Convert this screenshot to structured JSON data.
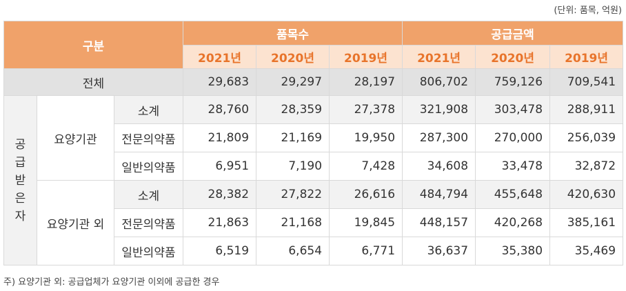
{
  "unit_note": "(단위: 품목, 억원)",
  "headers": {
    "category": "구분",
    "group_items": "품목수",
    "group_amount": "공급금액",
    "years": [
      "2021년",
      "2020년",
      "2019년"
    ]
  },
  "total": {
    "label": "전체",
    "values": [
      "29,683",
      "29,297",
      "28,197",
      "806,702",
      "759,126",
      "709,541"
    ]
  },
  "recipient_label": [
    "공",
    "급",
    "받",
    "은",
    "자"
  ],
  "groups": [
    {
      "name": "요양기관",
      "rows": [
        {
          "label": "소계",
          "values": [
            "28,760",
            "28,359",
            "27,378",
            "321,908",
            "303,478",
            "288,911"
          ]
        },
        {
          "label": "전문의약품",
          "values": [
            "21,809",
            "21,169",
            "19,950",
            "287,300",
            "270,000",
            "256,039"
          ]
        },
        {
          "label": "일반의약품",
          "values": [
            "6,951",
            "7,190",
            "7,428",
            "34,608",
            "33,478",
            "32,872"
          ]
        }
      ]
    },
    {
      "name": "요양기관 외",
      "rows": [
        {
          "label": "소계",
          "values": [
            "28,382",
            "27,822",
            "26,616",
            "484,794",
            "455,648",
            "420,630"
          ]
        },
        {
          "label": "전문의약품",
          "values": [
            "21,863",
            "21,168",
            "19,845",
            "448,157",
            "420,268",
            "385,161"
          ]
        },
        {
          "label": "일반의약품",
          "values": [
            "6,519",
            "6,654",
            "6,771",
            "36,637",
            "35,380",
            "35,469"
          ]
        }
      ]
    }
  ],
  "footnote": "주) 요양기관 외: 공급업체가 요양기관 이외에 공급한 경우"
}
